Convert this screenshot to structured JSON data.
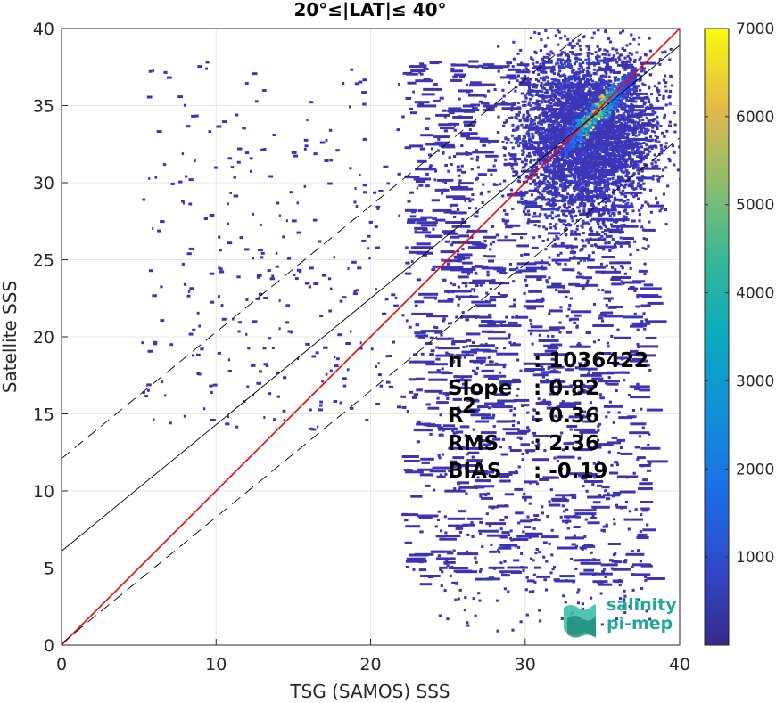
{
  "chart_data": {
    "type": "heatmap",
    "title": "20°≤|LAT|≤ 40°",
    "xlabel": "TSG (SAMOS) SSS",
    "ylabel": "Satellite SSS",
    "xlim": [
      0,
      40
    ],
    "ylim": [
      0,
      40
    ],
    "xticks": [
      "0",
      "10",
      "20",
      "30",
      "40"
    ],
    "yticks": [
      "0",
      "5",
      "10",
      "15",
      "20",
      "25",
      "30",
      "35",
      "40"
    ],
    "grid": true,
    "colorbar": {
      "range": [
        0,
        7000
      ],
      "ticks": [
        "1000",
        "2000",
        "3000",
        "4000",
        "5000",
        "6000",
        "7000"
      ],
      "colormap": "parula"
    },
    "lines": [
      {
        "name": "identity",
        "slope": 1.0,
        "intercept": 0.0,
        "color": "#ff0000",
        "style": "solid"
      },
      {
        "name": "regression",
        "slope": 0.82,
        "intercept": 6.1,
        "color": "#000000",
        "style": "solid"
      },
      {
        "name": "upper-bound",
        "slope": 0.82,
        "intercept": 12.1,
        "color": "#000000",
        "style": "dashed"
      },
      {
        "name": "lower-bound",
        "slope": 0.82,
        "intercept": 0.1,
        "color": "#000000",
        "style": "dashed"
      }
    ],
    "density_peak": {
      "x": 34.5,
      "y": 34.8,
      "max_count": 7000
    },
    "stats": [
      {
        "label": "n",
        "value": ": 1036422"
      },
      {
        "label": "Slope",
        "value": ": 0.82"
      },
      {
        "label": "R",
        "sup": "2",
        "value": ": 0.36"
      },
      {
        "label": "RMS",
        "value": ": 2.36"
      },
      {
        "label": "BIAS",
        "value": ": -0.19"
      }
    ]
  },
  "logo": {
    "line1": "salinity",
    "line2": "pi-mep"
  }
}
